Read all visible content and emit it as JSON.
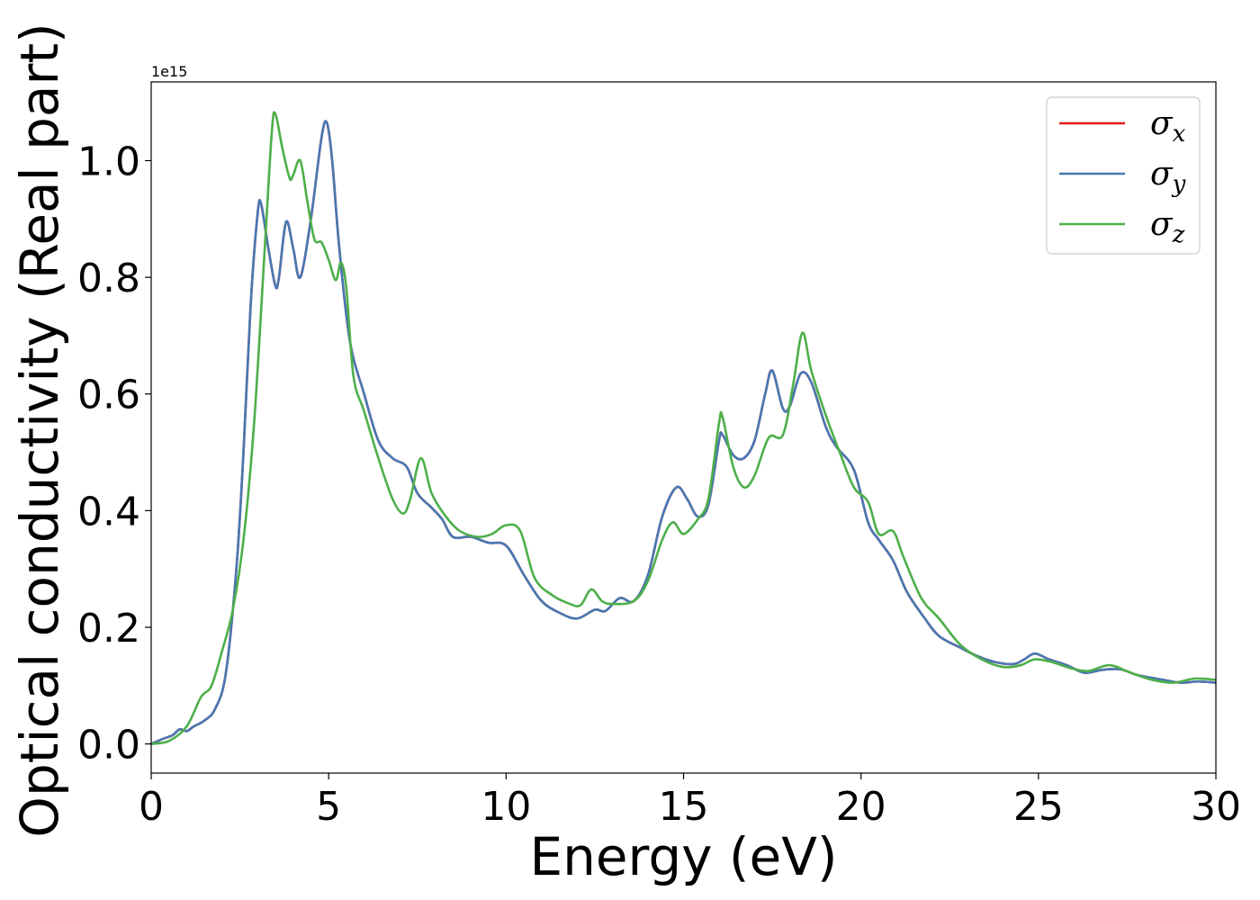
{
  "chart_data": {
    "type": "line",
    "xlabel": "Energy (eV)",
    "ylabel": "Optical conductivity (Real part)",
    "y_offset_label": "1e15",
    "xlim": [
      0,
      30
    ],
    "ylim": [
      -0.05,
      1.135
    ],
    "xticks": [
      0,
      5,
      10,
      15,
      20,
      25,
      30
    ],
    "xtick_labels": [
      "0",
      "5",
      "10",
      "15",
      "20",
      "25",
      "30"
    ],
    "yticks": [
      0.0,
      0.2,
      0.4,
      0.6,
      0.8,
      1.0
    ],
    "ytick_labels": [
      "0.0",
      "0.2",
      "0.4",
      "0.6",
      "0.8",
      "1.0"
    ],
    "grid": false,
    "legend_position": "top-right",
    "series": [
      {
        "name": "σx",
        "legend_base": "σ",
        "legend_sub": "x",
        "color": "#e41a1c",
        "points": [
          [
            0,
            0
          ],
          [
            0.3,
            0.008
          ],
          [
            0.6,
            0.015
          ],
          [
            0.8,
            0.025
          ],
          [
            1.0,
            0.022
          ],
          [
            1.2,
            0.03
          ],
          [
            1.5,
            0.04
          ],
          [
            1.8,
            0.06
          ],
          [
            2.1,
            0.12
          ],
          [
            2.4,
            0.3
          ],
          [
            2.6,
            0.5
          ],
          [
            2.8,
            0.75
          ],
          [
            3.0,
            0.91
          ],
          [
            3.1,
            0.925
          ],
          [
            3.3,
            0.85
          ],
          [
            3.5,
            0.785
          ],
          [
            3.6,
            0.8
          ],
          [
            3.8,
            0.895
          ],
          [
            4.0,
            0.85
          ],
          [
            4.2,
            0.8
          ],
          [
            4.5,
            0.9
          ],
          [
            4.8,
            1.04
          ],
          [
            4.95,
            1.065
          ],
          [
            5.1,
            1.0
          ],
          [
            5.3,
            0.85
          ],
          [
            5.6,
            0.69
          ],
          [
            6.0,
            0.6
          ],
          [
            6.4,
            0.52
          ],
          [
            6.8,
            0.49
          ],
          [
            7.2,
            0.475
          ],
          [
            7.5,
            0.43
          ],
          [
            7.9,
            0.405
          ],
          [
            8.2,
            0.385
          ],
          [
            8.5,
            0.355
          ],
          [
            9.0,
            0.355
          ],
          [
            9.5,
            0.345
          ],
          [
            10.0,
            0.34
          ],
          [
            10.5,
            0.29
          ],
          [
            11.0,
            0.245
          ],
          [
            11.5,
            0.225
          ],
          [
            12.0,
            0.215
          ],
          [
            12.5,
            0.23
          ],
          [
            12.8,
            0.228
          ],
          [
            13.2,
            0.25
          ],
          [
            13.6,
            0.245
          ],
          [
            14.0,
            0.29
          ],
          [
            14.4,
            0.39
          ],
          [
            14.8,
            0.44
          ],
          [
            15.1,
            0.42
          ],
          [
            15.4,
            0.39
          ],
          [
            15.7,
            0.41
          ],
          [
            16.0,
            0.52
          ],
          [
            16.1,
            0.53
          ],
          [
            16.4,
            0.495
          ],
          [
            16.7,
            0.49
          ],
          [
            17.0,
            0.52
          ],
          [
            17.3,
            0.6
          ],
          [
            17.5,
            0.64
          ],
          [
            17.8,
            0.575
          ],
          [
            18.0,
            0.58
          ],
          [
            18.3,
            0.635
          ],
          [
            18.6,
            0.62
          ],
          [
            19.0,
            0.545
          ],
          [
            19.3,
            0.51
          ],
          [
            19.8,
            0.47
          ],
          [
            20.2,
            0.38
          ],
          [
            20.5,
            0.35
          ],
          [
            20.9,
            0.315
          ],
          [
            21.3,
            0.26
          ],
          [
            21.8,
            0.215
          ],
          [
            22.2,
            0.185
          ],
          [
            22.8,
            0.165
          ],
          [
            23.3,
            0.15
          ],
          [
            23.8,
            0.14
          ],
          [
            24.3,
            0.137
          ],
          [
            24.6,
            0.145
          ],
          [
            24.9,
            0.155
          ],
          [
            25.3,
            0.145
          ],
          [
            25.8,
            0.135
          ],
          [
            26.3,
            0.122
          ],
          [
            26.8,
            0.127
          ],
          [
            27.3,
            0.128
          ],
          [
            27.8,
            0.118
          ],
          [
            28.5,
            0.11
          ],
          [
            29.0,
            0.105
          ],
          [
            29.5,
            0.107
          ],
          [
            30.0,
            0.105
          ]
        ]
      },
      {
        "name": "σy",
        "legend_base": "σ",
        "legend_sub": "y",
        "color": "#4778b3",
        "points": [
          [
            0,
            0
          ],
          [
            0.3,
            0.008
          ],
          [
            0.6,
            0.015
          ],
          [
            0.8,
            0.025
          ],
          [
            1.0,
            0.022
          ],
          [
            1.2,
            0.03
          ],
          [
            1.5,
            0.04
          ],
          [
            1.8,
            0.06
          ],
          [
            2.1,
            0.12
          ],
          [
            2.4,
            0.3
          ],
          [
            2.6,
            0.5
          ],
          [
            2.8,
            0.75
          ],
          [
            3.0,
            0.91
          ],
          [
            3.1,
            0.925
          ],
          [
            3.3,
            0.85
          ],
          [
            3.5,
            0.785
          ],
          [
            3.6,
            0.8
          ],
          [
            3.8,
            0.895
          ],
          [
            4.0,
            0.85
          ],
          [
            4.2,
            0.8
          ],
          [
            4.5,
            0.9
          ],
          [
            4.8,
            1.04
          ],
          [
            4.95,
            1.065
          ],
          [
            5.1,
            1.0
          ],
          [
            5.3,
            0.85
          ],
          [
            5.6,
            0.69
          ],
          [
            6.0,
            0.6
          ],
          [
            6.4,
            0.52
          ],
          [
            6.8,
            0.49
          ],
          [
            7.2,
            0.475
          ],
          [
            7.5,
            0.43
          ],
          [
            7.9,
            0.405
          ],
          [
            8.2,
            0.385
          ],
          [
            8.5,
            0.355
          ],
          [
            9.0,
            0.355
          ],
          [
            9.5,
            0.345
          ],
          [
            10.0,
            0.34
          ],
          [
            10.5,
            0.29
          ],
          [
            11.0,
            0.245
          ],
          [
            11.5,
            0.225
          ],
          [
            12.0,
            0.215
          ],
          [
            12.5,
            0.23
          ],
          [
            12.8,
            0.228
          ],
          [
            13.2,
            0.25
          ],
          [
            13.6,
            0.245
          ],
          [
            14.0,
            0.29
          ],
          [
            14.4,
            0.39
          ],
          [
            14.8,
            0.44
          ],
          [
            15.1,
            0.42
          ],
          [
            15.4,
            0.39
          ],
          [
            15.7,
            0.41
          ],
          [
            16.0,
            0.52
          ],
          [
            16.1,
            0.53
          ],
          [
            16.4,
            0.495
          ],
          [
            16.7,
            0.49
          ],
          [
            17.0,
            0.52
          ],
          [
            17.3,
            0.6
          ],
          [
            17.5,
            0.64
          ],
          [
            17.8,
            0.575
          ],
          [
            18.0,
            0.58
          ],
          [
            18.3,
            0.635
          ],
          [
            18.6,
            0.62
          ],
          [
            19.0,
            0.545
          ],
          [
            19.3,
            0.51
          ],
          [
            19.8,
            0.47
          ],
          [
            20.2,
            0.38
          ],
          [
            20.5,
            0.35
          ],
          [
            20.9,
            0.315
          ],
          [
            21.3,
            0.26
          ],
          [
            21.8,
            0.215
          ],
          [
            22.2,
            0.185
          ],
          [
            22.8,
            0.165
          ],
          [
            23.3,
            0.15
          ],
          [
            23.8,
            0.14
          ],
          [
            24.3,
            0.137
          ],
          [
            24.6,
            0.145
          ],
          [
            24.9,
            0.155
          ],
          [
            25.3,
            0.145
          ],
          [
            25.8,
            0.135
          ],
          [
            26.3,
            0.122
          ],
          [
            26.8,
            0.127
          ],
          [
            27.3,
            0.128
          ],
          [
            27.8,
            0.118
          ],
          [
            28.5,
            0.11
          ],
          [
            29.0,
            0.105
          ],
          [
            29.5,
            0.107
          ],
          [
            30.0,
            0.105
          ]
        ]
      },
      {
        "name": "σz",
        "legend_base": "σ",
        "legend_sub": "z",
        "color": "#4daf4a",
        "points": [
          [
            0,
            0
          ],
          [
            0.5,
            0.005
          ],
          [
            1.0,
            0.03
          ],
          [
            1.4,
            0.08
          ],
          [
            1.7,
            0.1
          ],
          [
            2.0,
            0.16
          ],
          [
            2.3,
            0.23
          ],
          [
            2.6,
            0.35
          ],
          [
            2.9,
            0.55
          ],
          [
            3.2,
            0.85
          ],
          [
            3.4,
            1.05
          ],
          [
            3.5,
            1.08
          ],
          [
            3.7,
            1.02
          ],
          [
            3.9,
            0.97
          ],
          [
            4.0,
            0.975
          ],
          [
            4.2,
            1.0
          ],
          [
            4.4,
            0.93
          ],
          [
            4.6,
            0.865
          ],
          [
            4.8,
            0.86
          ],
          [
            5.0,
            0.83
          ],
          [
            5.2,
            0.795
          ],
          [
            5.35,
            0.825
          ],
          [
            5.5,
            0.78
          ],
          [
            5.7,
            0.63
          ],
          [
            6.0,
            0.57
          ],
          [
            6.4,
            0.49
          ],
          [
            6.8,
            0.42
          ],
          [
            7.1,
            0.395
          ],
          [
            7.3,
            0.42
          ],
          [
            7.6,
            0.49
          ],
          [
            7.9,
            0.43
          ],
          [
            8.3,
            0.39
          ],
          [
            8.7,
            0.365
          ],
          [
            9.2,
            0.355
          ],
          [
            9.6,
            0.36
          ],
          [
            10.0,
            0.375
          ],
          [
            10.4,
            0.365
          ],
          [
            10.8,
            0.285
          ],
          [
            11.3,
            0.255
          ],
          [
            11.8,
            0.24
          ],
          [
            12.1,
            0.238
          ],
          [
            12.4,
            0.265
          ],
          [
            12.7,
            0.245
          ],
          [
            13.0,
            0.24
          ],
          [
            13.6,
            0.245
          ],
          [
            14.0,
            0.28
          ],
          [
            14.4,
            0.35
          ],
          [
            14.7,
            0.38
          ],
          [
            15.0,
            0.36
          ],
          [
            15.4,
            0.385
          ],
          [
            15.7,
            0.42
          ],
          [
            16.0,
            0.55
          ],
          [
            16.1,
            0.56
          ],
          [
            16.4,
            0.475
          ],
          [
            16.7,
            0.44
          ],
          [
            17.0,
            0.46
          ],
          [
            17.4,
            0.525
          ],
          [
            17.8,
            0.53
          ],
          [
            18.1,
            0.62
          ],
          [
            18.35,
            0.705
          ],
          [
            18.6,
            0.64
          ],
          [
            19.0,
            0.565
          ],
          [
            19.4,
            0.5
          ],
          [
            19.8,
            0.44
          ],
          [
            20.2,
            0.415
          ],
          [
            20.5,
            0.36
          ],
          [
            20.9,
            0.365
          ],
          [
            21.2,
            0.32
          ],
          [
            21.7,
            0.25
          ],
          [
            22.2,
            0.215
          ],
          [
            22.8,
            0.17
          ],
          [
            23.4,
            0.145
          ],
          [
            24.0,
            0.132
          ],
          [
            24.5,
            0.135
          ],
          [
            24.9,
            0.145
          ],
          [
            25.4,
            0.14
          ],
          [
            25.9,
            0.13
          ],
          [
            26.4,
            0.125
          ],
          [
            27.0,
            0.135
          ],
          [
            27.6,
            0.122
          ],
          [
            28.2,
            0.11
          ],
          [
            28.8,
            0.105
          ],
          [
            29.4,
            0.112
          ],
          [
            30.0,
            0.11
          ]
        ]
      }
    ]
  }
}
